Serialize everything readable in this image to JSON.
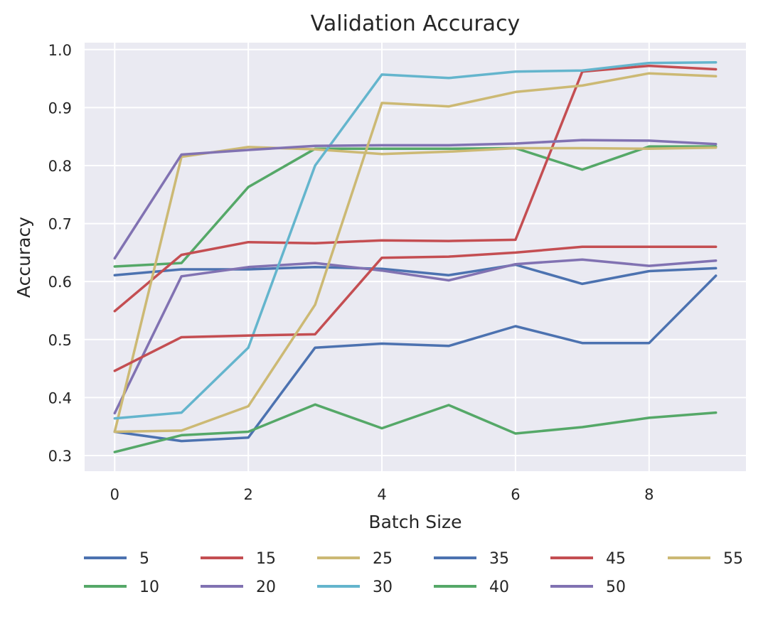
{
  "chart_data": {
    "type": "line",
    "title": "Validation Accuracy",
    "xlabel": "Batch Size",
    "ylabel": "Accuracy",
    "xlim": [
      -0.45,
      9.45
    ],
    "ylim": [
      0.273,
      1.012
    ],
    "xticks": [
      0,
      2,
      4,
      6,
      8
    ],
    "xtick_labels": [
      "0",
      "2",
      "4",
      "6",
      "8"
    ],
    "yticks": [
      0.3,
      0.4,
      0.5,
      0.6,
      0.7,
      0.8,
      0.9,
      1.0
    ],
    "ytick_labels": [
      "0.3",
      "0.4",
      "0.5",
      "0.6",
      "0.7",
      "0.8",
      "0.9",
      "1.0"
    ],
    "grid": true,
    "background": "#EAEAF2",
    "legend_position": "bottom, 6 columns",
    "x": [
      0,
      1,
      2,
      3,
      4,
      5,
      6,
      7,
      8,
      9
    ],
    "series": [
      {
        "name": "5",
        "color": "#4C72B0",
        "values": [
          0.611,
          0.621,
          0.621,
          0.625,
          0.622,
          0.611,
          0.629,
          0.596,
          0.618,
          0.623
        ]
      },
      {
        "name": "10",
        "color": "#55A868",
        "values": [
          0.626,
          0.632,
          0.763,
          0.829,
          0.829,
          0.829,
          0.83,
          0.793,
          0.833,
          0.833
        ]
      },
      {
        "name": "15",
        "color": "#C44E52",
        "values": [
          0.549,
          0.646,
          0.668,
          0.666,
          0.671,
          0.67,
          0.672,
          0.962,
          0.972,
          0.966
        ]
      },
      {
        "name": "20",
        "color": "#8172B2",
        "values": [
          0.373,
          0.609,
          0.625,
          0.632,
          0.619,
          0.602,
          0.63,
          0.638,
          0.627,
          0.636
        ]
      },
      {
        "name": "25",
        "color": "#CCB974",
        "values": [
          0.341,
          0.815,
          0.832,
          0.828,
          0.82,
          0.824,
          0.83,
          0.83,
          0.829,
          0.831
        ]
      },
      {
        "name": "30",
        "color": "#64B5CD",
        "values": [
          0.364,
          0.374,
          0.486,
          0.8,
          0.957,
          0.951,
          0.962,
          0.964,
          0.977,
          0.978
        ]
      },
      {
        "name": "35",
        "color": "#4C72B0",
        "values": [
          0.341,
          0.325,
          0.331,
          0.486,
          0.493,
          0.489,
          0.523,
          0.494,
          0.494,
          0.61
        ]
      },
      {
        "name": "40",
        "color": "#55A868",
        "values": [
          0.306,
          0.335,
          0.341,
          0.388,
          0.347,
          0.387,
          0.338,
          0.349,
          0.365,
          0.374
        ]
      },
      {
        "name": "45",
        "color": "#C44E52",
        "values": [
          0.446,
          0.504,
          0.507,
          0.509,
          0.641,
          0.643,
          0.65,
          0.66,
          0.66,
          0.66
        ]
      },
      {
        "name": "50",
        "color": "#8172B2",
        "values": [
          0.64,
          0.819,
          0.827,
          0.834,
          0.835,
          0.835,
          0.838,
          0.844,
          0.843,
          0.837
        ]
      },
      {
        "name": "55",
        "color": "#CCB974",
        "values": [
          0.341,
          0.343,
          0.385,
          0.56,
          0.908,
          0.902,
          0.927,
          0.938,
          0.959,
          0.954
        ]
      }
    ]
  }
}
